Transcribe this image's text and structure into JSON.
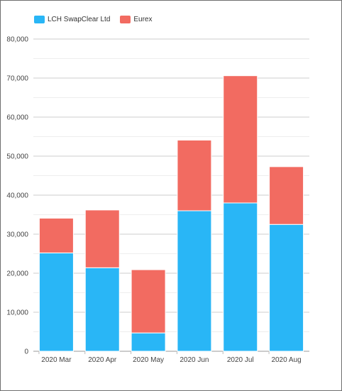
{
  "chart_data": {
    "type": "bar",
    "stacked": true,
    "categories": [
      "2020 Mar",
      "2020 Apr",
      "2020 May",
      "2020 Jun",
      "2020 Jul",
      "2020 Aug"
    ],
    "series": [
      {
        "name": "LCH SwapClear Ltd",
        "color": "#29b6f6",
        "values": [
          25200,
          21400,
          4700,
          36000,
          38000,
          32500
        ]
      },
      {
        "name": "Eurex",
        "color": "#f26b61",
        "values": [
          8900,
          14800,
          16200,
          18100,
          32600,
          14800
        ]
      }
    ],
    "ylim": [
      0,
      80000
    ],
    "yticks": [
      "0",
      "10,000",
      "20,000",
      "30,000",
      "40,000",
      "50,000",
      "60,000",
      "70,000",
      "80,000"
    ],
    "ytick_values": [
      0,
      10000,
      20000,
      30000,
      40000,
      50000,
      60000,
      70000,
      80000
    ],
    "grid": true,
    "legend_position": "top-left",
    "title": "",
    "xlabel": "",
    "ylabel": ""
  }
}
